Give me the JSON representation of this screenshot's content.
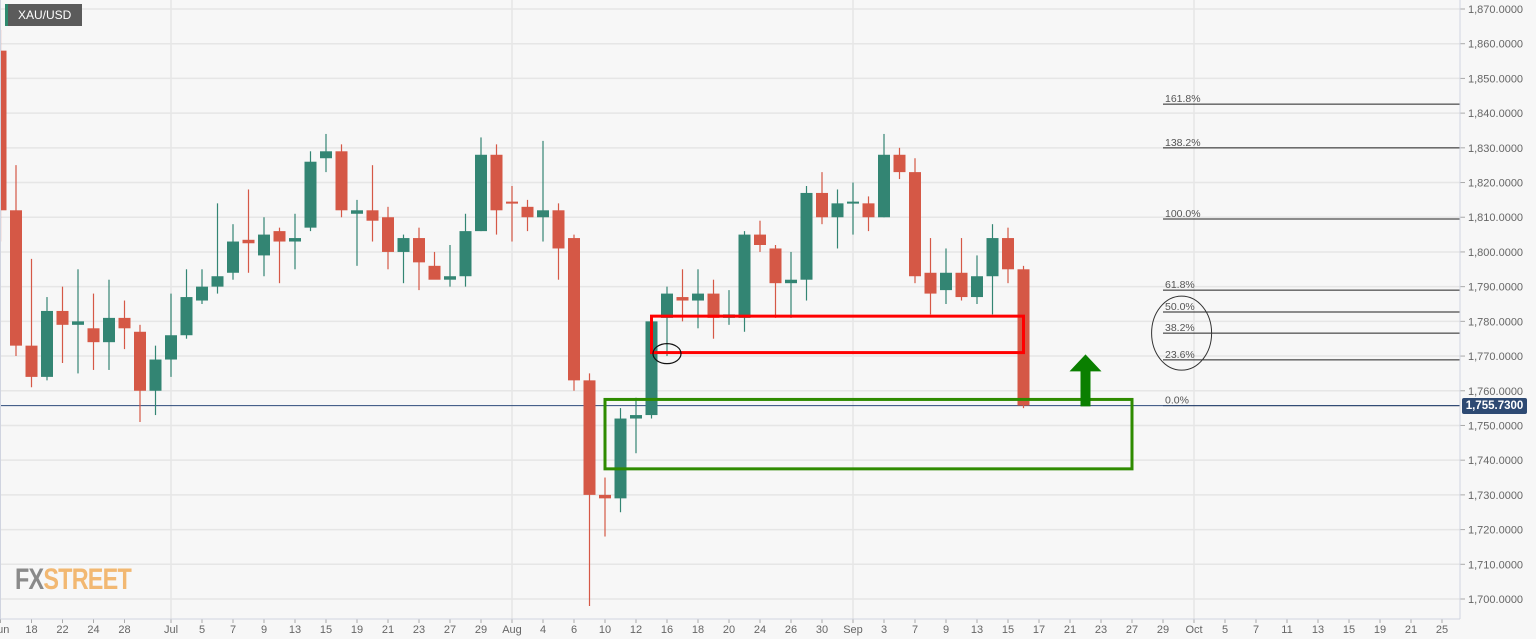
{
  "symbol": "XAU/USD",
  "logo": {
    "part1": "FX",
    "part2": "STREET"
  },
  "current_price_label": "1,755.7300",
  "colors": {
    "up": "#338573",
    "down": "#d55846",
    "price_line": "#2c4a7a",
    "fib": "#222222",
    "red_zone": "#ff0000",
    "green_zone": "#2e8b00",
    "arrow": "#0a7f00"
  },
  "chart_data": {
    "type": "candlestick",
    "title": "XAU/USD",
    "ylim": [
      1697,
      1872
    ],
    "yticks": [
      1870,
      1860,
      1850,
      1840,
      1830,
      1820,
      1810,
      1800,
      1790,
      1780,
      1770,
      1760,
      1750,
      1740,
      1730,
      1720,
      1710,
      1700
    ],
    "ytick_labels": [
      "1,870.0000",
      "1,860.0000",
      "1,850.0000",
      "1,840.0000",
      "1,830.0000",
      "1,820.0000",
      "1,810.0000",
      "1,800.0000",
      "1,790.0000",
      "1,780.0000",
      "1,770.0000",
      "1,760.0000",
      "1,750.0000",
      "1,740.0000",
      "1,730.0000",
      "1,720.0000",
      "1,710.0000",
      "1,700.0000"
    ],
    "xticks": [
      {
        "i": 0,
        "label": "Jun"
      },
      {
        "i": 2,
        "label": "18"
      },
      {
        "i": 4,
        "label": "22"
      },
      {
        "i": 6,
        "label": "24"
      },
      {
        "i": 8,
        "label": "28"
      },
      {
        "i": 11,
        "label": "Jul"
      },
      {
        "i": 13,
        "label": "5"
      },
      {
        "i": 15,
        "label": "7"
      },
      {
        "i": 17,
        "label": "9"
      },
      {
        "i": 19,
        "label": "13"
      },
      {
        "i": 21,
        "label": "15"
      },
      {
        "i": 23,
        "label": "19"
      },
      {
        "i": 25,
        "label": "21"
      },
      {
        "i": 27,
        "label": "23"
      },
      {
        "i": 29,
        "label": "27"
      },
      {
        "i": 31,
        "label": "29"
      },
      {
        "i": 33,
        "label": "Aug"
      },
      {
        "i": 35,
        "label": "4"
      },
      {
        "i": 37,
        "label": "6"
      },
      {
        "i": 39,
        "label": "10"
      },
      {
        "i": 41,
        "label": "12"
      },
      {
        "i": 43,
        "label": "16"
      },
      {
        "i": 45,
        "label": "18"
      },
      {
        "i": 47,
        "label": "20"
      },
      {
        "i": 49,
        "label": "24"
      },
      {
        "i": 51,
        "label": "26"
      },
      {
        "i": 53,
        "label": "30"
      },
      {
        "i": 55,
        "label": "Sep"
      },
      {
        "i": 57,
        "label": "3"
      },
      {
        "i": 59,
        "label": "7"
      },
      {
        "i": 61,
        "label": "9"
      },
      {
        "i": 63,
        "label": "13"
      },
      {
        "i": 65,
        "label": "15"
      },
      {
        "i": 67,
        "label": "17"
      },
      {
        "i": 69,
        "label": "21"
      },
      {
        "i": 71,
        "label": "23"
      },
      {
        "i": 73,
        "label": "27"
      },
      {
        "i": 75,
        "label": "29"
      },
      {
        "i": 77,
        "label": "Oct"
      },
      {
        "i": 79,
        "label": "5"
      },
      {
        "i": 81,
        "label": "7"
      },
      {
        "i": 83,
        "label": "11"
      },
      {
        "i": 85,
        "label": "13"
      },
      {
        "i": 87,
        "label": "15"
      },
      {
        "i": 89,
        "label": "19"
      },
      {
        "i": 91,
        "label": "21"
      },
      {
        "i": 93,
        "label": "25"
      }
    ],
    "month_lines": [
      11,
      33,
      55,
      77
    ],
    "ohlc": [
      [
        1858,
        1864,
        1803,
        1812
      ],
      [
        1812,
        1825,
        1770,
        1773
      ],
      [
        1773,
        1798,
        1761,
        1764
      ],
      [
        1764,
        1787,
        1763,
        1783
      ],
      [
        1783,
        1790,
        1768,
        1779
      ],
      [
        1779,
        1795,
        1765,
        1780
      ],
      [
        1778,
        1788,
        1766,
        1774
      ],
      [
        1774,
        1792,
        1766,
        1781
      ],
      [
        1781,
        1786,
        1772,
        1778
      ],
      [
        1777,
        1779,
        1751,
        1760
      ],
      [
        1760,
        1773,
        1753,
        1769
      ],
      [
        1769,
        1788,
        1764,
        1776
      ],
      [
        1776,
        1795,
        1775,
        1787
      ],
      [
        1786,
        1795,
        1785,
        1790
      ],
      [
        1790,
        1814,
        1788,
        1793
      ],
      [
        1794,
        1808,
        1792,
        1803
      ],
      [
        1803.5,
        1818,
        1794,
        1802.5
      ],
      [
        1799,
        1810,
        1793,
        1805
      ],
      [
        1806,
        1807,
        1791,
        1803
      ],
      [
        1803,
        1811,
        1795,
        1804
      ],
      [
        1807,
        1829,
        1806,
        1826
      ],
      [
        1827,
        1834,
        1823,
        1829
      ],
      [
        1829,
        1831,
        1810,
        1812
      ],
      [
        1811,
        1815,
        1796,
        1812
      ],
      [
        1812,
        1825,
        1803,
        1809
      ],
      [
        1810,
        1813,
        1795,
        1800
      ],
      [
        1800,
        1805,
        1791,
        1804
      ],
      [
        1804,
        1807,
        1789,
        1797
      ],
      [
        1796,
        1800,
        1793,
        1792
      ],
      [
        1792,
        1802,
        1790,
        1793
      ],
      [
        1793,
        1811,
        1790,
        1806
      ],
      [
        1806,
        1833,
        1806,
        1828
      ],
      [
        1828,
        1831,
        1805,
        1812
      ],
      [
        1814.5,
        1819,
        1803,
        1814
      ],
      [
        1813,
        1815,
        1806,
        1810
      ],
      [
        1810,
        1832,
        1803,
        1812
      ],
      [
        1812,
        1814,
        1792,
        1801
      ],
      [
        1804,
        1805,
        1760,
        1763
      ],
      [
        1763,
        1765,
        1698,
        1730
      ],
      [
        1730,
        1735,
        1718,
        1729
      ],
      [
        1729,
        1755,
        1725,
        1752
      ],
      [
        1752,
        1758,
        1742,
        1753
      ],
      [
        1753,
        1781,
        1752,
        1780
      ],
      [
        1781,
        1790,
        1770,
        1788
      ],
      [
        1787,
        1795,
        1780,
        1786
      ],
      [
        1786,
        1795,
        1778,
        1788
      ],
      [
        1788,
        1792,
        1775,
        1781
      ],
      [
        1781,
        1789,
        1779,
        1782
      ],
      [
        1781,
        1806,
        1777,
        1805
      ],
      [
        1805,
        1809,
        1800,
        1802
      ],
      [
        1801,
        1802,
        1781,
        1791
      ],
      [
        1791,
        1800,
        1781,
        1792
      ],
      [
        1792,
        1819,
        1786,
        1817
      ],
      [
        1817,
        1823,
        1808,
        1810
      ],
      [
        1810,
        1818,
        1801,
        1814
      ],
      [
        1814,
        1820,
        1805,
        1814.5
      ],
      [
        1814,
        1816,
        1806,
        1810
      ],
      [
        1810,
        1834,
        1810,
        1828
      ],
      [
        1828,
        1830,
        1821,
        1823
      ],
      [
        1823,
        1827,
        1791,
        1793
      ],
      [
        1794,
        1804,
        1782,
        1788
      ],
      [
        1789,
        1801,
        1785,
        1794
      ],
      [
        1794,
        1804,
        1786,
        1787
      ],
      [
        1787,
        1799,
        1785,
        1793
      ],
      [
        1793,
        1808,
        1782,
        1804
      ],
      [
        1804,
        1807,
        1791,
        1795
      ],
      [
        1795,
        1796,
        1755,
        1755.73
      ]
    ],
    "current_price": 1755.73,
    "fibonacci": [
      {
        "label": "161.8%",
        "price": 1842.6
      },
      {
        "label": "138.2%",
        "price": 1830.0
      },
      {
        "label": "100.0%",
        "price": 1809.5
      },
      {
        "label": "61.8%",
        "price": 1789.0
      },
      {
        "label": "50.0%",
        "price": 1782.7
      },
      {
        "label": "38.2%",
        "price": 1776.6
      },
      {
        "label": "23.6%",
        "price": 1768.9
      },
      {
        "label": "0.0%",
        "price": 1755.73
      }
    ],
    "annotations": {
      "red_zone": {
        "i0": 42,
        "i1": 66,
        "p_top": 1781.5,
        "p_bottom": 1771
      },
      "green_zone": {
        "i0": 39,
        "i1": 73,
        "p_top": 1757.5,
        "p_bottom": 1737.5
      },
      "up_arrow": {
        "i": 70,
        "p_from": 1755.5,
        "p_to": 1770.5
      },
      "small_circle": {
        "i": 43,
        "p": 1770.7
      },
      "fib_circle": {
        "i": 76.2,
        "p": 1776.6
      }
    }
  }
}
